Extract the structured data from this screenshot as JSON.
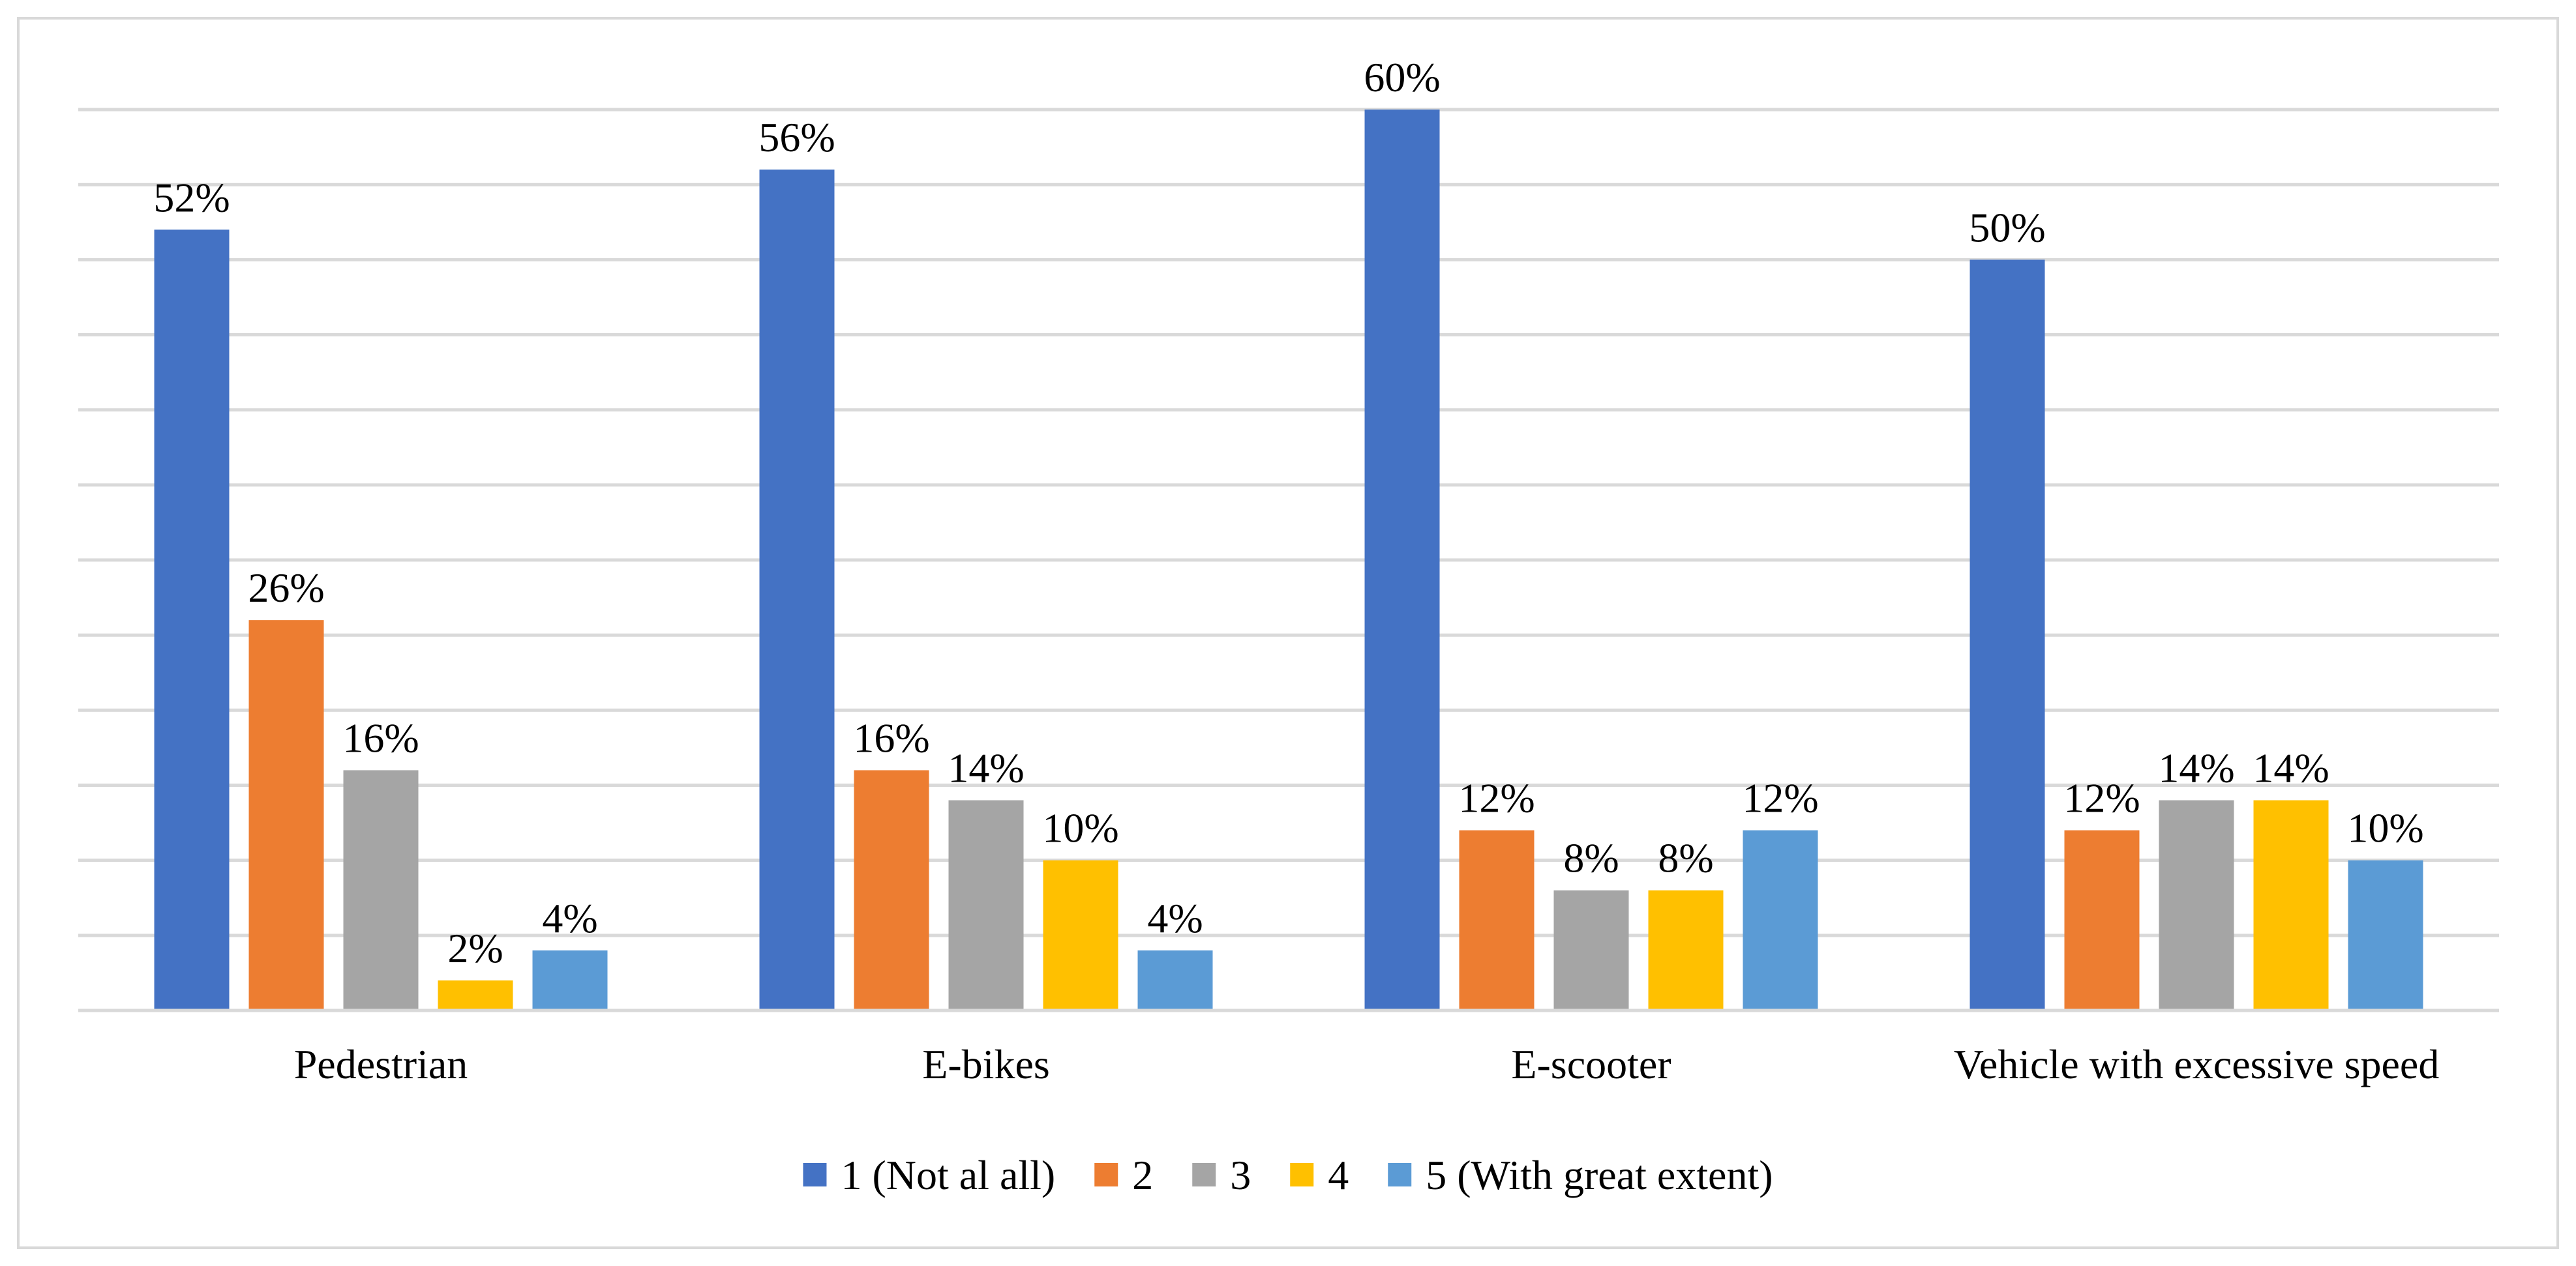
{
  "chart_data": {
    "type": "bar",
    "title": "",
    "xlabel": "",
    "ylabel": "",
    "ylim": [
      0,
      62
    ],
    "grid": true,
    "y_tick_labels_visible": false,
    "legend_position": "bottom",
    "categories": [
      "Pedestrian",
      "E-bikes",
      "E-scooter",
      "Vehicle with excessive speed"
    ],
    "series": [
      {
        "name": "1 (Not al all)",
        "color": "#4472C4",
        "values": [
          52,
          56,
          60,
          50
        ],
        "labels": [
          "52%",
          "56%",
          "60%",
          "50%"
        ]
      },
      {
        "name": "2",
        "color": "#ED7D31",
        "values": [
          26,
          16,
          12,
          12
        ],
        "labels": [
          "26%",
          "16%",
          "12%",
          "12%"
        ]
      },
      {
        "name": "3",
        "color": "#A5A5A5",
        "values": [
          16,
          14,
          8,
          14
        ],
        "labels": [
          "16%",
          "14%",
          "8%",
          "14%"
        ]
      },
      {
        "name": "4",
        "color": "#FFC000",
        "values": [
          2,
          10,
          8,
          14
        ],
        "labels": [
          "2%",
          "10%",
          "8%",
          "14%"
        ]
      },
      {
        "name": "5 (With great extent)",
        "color": "#5B9BD5",
        "values": [
          4,
          4,
          12,
          10
        ],
        "labels": [
          "4%",
          "4%",
          "12%",
          "10%"
        ]
      }
    ]
  }
}
